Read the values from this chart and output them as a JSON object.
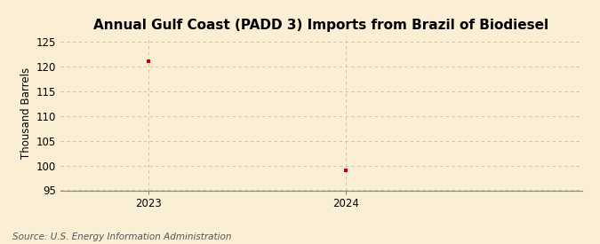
{
  "title": "Annual Gulf Coast (PADD 3) Imports from Brazil of Biodiesel",
  "ylabel": "Thousand Barrels",
  "source": "Source: U.S. Energy Information Administration",
  "x_values": [
    2023,
    2024
  ],
  "y_values": [
    121,
    99
  ],
  "marker_color": "#cc0000",
  "background_color": "#faefd4",
  "ylim": [
    95,
    126
  ],
  "yticks": [
    95,
    100,
    105,
    110,
    115,
    120,
    125
  ],
  "xticks": [
    2023,
    2024
  ],
  "grid_color": "#bbbbbb",
  "vlines": [
    2023,
    2024
  ],
  "title_fontsize": 11,
  "label_fontsize": 8.5,
  "tick_fontsize": 8.5,
  "source_fontsize": 7.5,
  "xlim": [
    2022.55,
    2025.2
  ]
}
